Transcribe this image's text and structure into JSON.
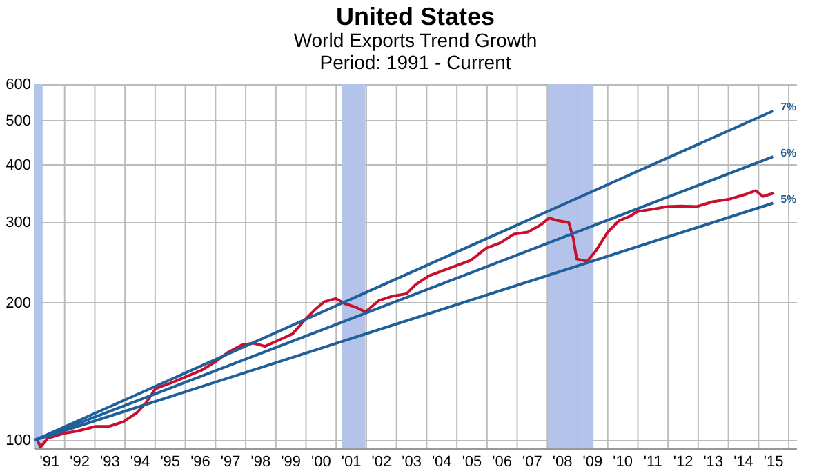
{
  "chart_data": {
    "type": "line",
    "title": "United States",
    "subtitle": "World Exports Trend Growth\nPeriod: 1991 - Current",
    "log": "y",
    "grid": true,
    "xlim": [
      1990.5,
      2015.75
    ],
    "ylim": [
      96,
      600
    ],
    "yticks": [
      100,
      200,
      300,
      400,
      500,
      600
    ],
    "xticks": [
      {
        "value": 1991,
        "label": "'91"
      },
      {
        "value": 1992,
        "label": "'92"
      },
      {
        "value": 1993,
        "label": "'93"
      },
      {
        "value": 1994,
        "label": "'94"
      },
      {
        "value": 1995,
        "label": "'95"
      },
      {
        "value": 1996,
        "label": "'96"
      },
      {
        "value": 1997,
        "label": "'97"
      },
      {
        "value": 1998,
        "label": "'98"
      },
      {
        "value": 1999,
        "label": "'99"
      },
      {
        "value": 2000,
        "label": "'00"
      },
      {
        "value": 2001,
        "label": "'01"
      },
      {
        "value": 2002,
        "label": "'02"
      },
      {
        "value": 2003,
        "label": "'03"
      },
      {
        "value": 2004,
        "label": "'04"
      },
      {
        "value": 2005,
        "label": "'05"
      },
      {
        "value": 2006,
        "label": "'06"
      },
      {
        "value": 2007,
        "label": "'07"
      },
      {
        "value": 2008,
        "label": "'08"
      },
      {
        "value": 2009,
        "label": "'09"
      },
      {
        "value": 2010,
        "label": "'10"
      },
      {
        "value": 2011,
        "label": "'11"
      },
      {
        "value": 2012,
        "label": "'12"
      },
      {
        "value": 2013,
        "label": "'13"
      },
      {
        "value": 2014,
        "label": "'14"
      },
      {
        "value": 2015,
        "label": "'15"
      },
      {
        "value": 1991.5,
        "label": null
      },
      {
        "value": 1992.5,
        "label": null
      },
      {
        "value": 1993.5,
        "label": null
      },
      {
        "value": 1994.5,
        "label": null
      },
      {
        "value": 1995.5,
        "label": null
      },
      {
        "value": 1996.5,
        "label": null
      },
      {
        "value": 1997.5,
        "label": null
      },
      {
        "value": 1998.5,
        "label": null
      },
      {
        "value": 1999.5,
        "label": null
      },
      {
        "value": 2000.5,
        "label": null
      },
      {
        "value": 2001.5,
        "label": null
      },
      {
        "value": 2002.5,
        "label": null
      },
      {
        "value": 2003.5,
        "label": null
      },
      {
        "value": 2004.5,
        "label": null
      },
      {
        "value": 2005.5,
        "label": null
      },
      {
        "value": 2006.5,
        "label": null
      },
      {
        "value": 2007.5,
        "label": null
      },
      {
        "value": 2008.5,
        "label": null
      },
      {
        "value": 2009.5,
        "label": null
      },
      {
        "value": 2010.5,
        "label": null
      },
      {
        "value": 2011.5,
        "label": null
      },
      {
        "value": 2012.5,
        "label": null
      },
      {
        "value": 2013.5,
        "label": null
      },
      {
        "value": 2014.5,
        "label": null
      },
      {
        "value": 2015.5,
        "label": null
      }
    ],
    "bands": [
      {
        "axis": "x",
        "from": 1990.5,
        "to": 1990.77,
        "color": "#b4c3ea"
      },
      {
        "axis": "x",
        "from": 2000.7,
        "to": 2001.47,
        "color": "#b4c3ea"
      },
      {
        "axis": "x",
        "from": 2007.5,
        "to": 2009.03,
        "color": "#b4c3ea"
      }
    ],
    "series": [
      {
        "color": "#c8102e",
        "x": [
          1990.59,
          1990.7,
          1990.94,
          1991.47,
          1991.92,
          1992.53,
          1992.98,
          1993.44,
          1993.89,
          1994.2,
          1994.5,
          1994.73,
          1995.03,
          1995.56,
          1996.02,
          1996.47,
          1996.92,
          1997.38,
          1997.76,
          1998.14,
          1998.59,
          1999.05,
          1999.42,
          1999.8,
          2000.1,
          2000.48,
          2000.79,
          2001.17,
          2001.47,
          2001.92,
          2002.38,
          2002.83,
          2003.14,
          2003.59,
          2004.05,
          2004.5,
          2004.95,
          2005.48,
          2005.94,
          2006.39,
          2006.85,
          2007.3,
          2007.56,
          2007.83,
          2008.21,
          2008.36,
          2008.47,
          2008.82,
          2009.12,
          2009.5,
          2009.88,
          2010.26,
          2010.48,
          2011.02,
          2011.47,
          2011.92,
          2012.45,
          2012.98,
          2013.5,
          2014.03,
          2014.41,
          2014.64,
          2015.02
        ],
        "values": [
          100,
          96.6,
          101,
          103.5,
          104.7,
          107.2,
          107.2,
          109.7,
          114.8,
          120.8,
          129.4,
          131.3,
          133.4,
          138,
          142,
          148,
          155.7,
          161.5,
          163,
          160.4,
          165.4,
          170.7,
          182,
          193,
          200.6,
          204,
          198.8,
          195,
          190.7,
          202,
          206.6,
          209,
          219,
          229,
          235,
          241,
          247,
          263,
          270,
          282,
          285,
          296,
          306,
          302,
          299,
          276,
          249,
          246,
          260,
          285,
          302,
          309,
          316,
          320,
          324,
          325,
          324,
          332,
          336,
          344,
          351,
          341,
          347
        ]
      },
      {
        "name": "7%",
        "color": "#1f5f9a",
        "x": [
          1990.5,
          2015.0
        ],
        "values": [
          100,
          525
        ]
      },
      {
        "name": "6%",
        "color": "#1f5f9a",
        "x": [
          1990.5,
          2015.0
        ],
        "values": [
          100,
          417
        ]
      },
      {
        "name": "5%",
        "color": "#1f5f9a",
        "x": [
          1990.5,
          2015.0
        ],
        "values": [
          100,
          330
        ]
      }
    ]
  }
}
